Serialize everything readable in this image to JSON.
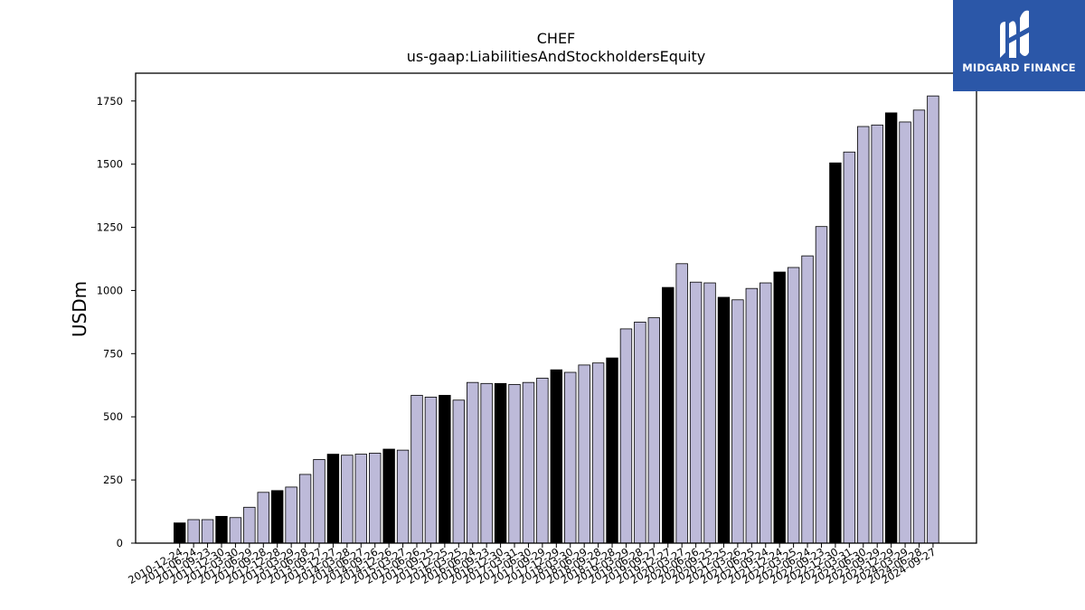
{
  "logo": {
    "text": "MIDGARD FINANCE"
  },
  "chart_data": {
    "type": "bar",
    "title": "CHEF",
    "subtitle": "us-gaap:LiabilitiesAndStockholdersEquity",
    "xlabel": "",
    "ylabel": "USDm",
    "ylim": [
      0,
      1860
    ],
    "yticks": [
      0,
      250,
      500,
      750,
      1000,
      1250,
      1500,
      1750
    ],
    "grid": false,
    "colors": {
      "fiscal_year_end": "#000000",
      "quarter": "#bdbad9",
      "edge": "#000000"
    },
    "categories": [
      "2010-12-24",
      "2011-06-24",
      "2011-09-23",
      "2011-12-30",
      "2012-03-30",
      "2012-06-29",
      "2012-09-28",
      "2012-12-28",
      "2013-03-29",
      "2013-06-28",
      "2013-09-27",
      "2013-12-27",
      "2014-03-28",
      "2014-06-27",
      "2014-09-26",
      "2014-12-26",
      "2015-03-27",
      "2015-06-26",
      "2015-09-25",
      "2015-12-25",
      "2016-03-25",
      "2016-06-24",
      "2016-09-23",
      "2016-12-30",
      "2017-03-31",
      "2017-06-30",
      "2017-09-29",
      "2017-12-29",
      "2018-03-30",
      "2018-06-29",
      "2018-09-28",
      "2018-12-28",
      "2019-03-29",
      "2019-06-28",
      "2019-09-27",
      "2019-12-27",
      "2020-03-27",
      "2020-06-26",
      "2020-09-25",
      "2020-12-25",
      "2021-03-26",
      "2021-06-25",
      "2021-09-24",
      "2021-12-24",
      "2022-03-25",
      "2022-06-24",
      "2022-09-23",
      "2022-12-30",
      "2023-03-31",
      "2023-06-30",
      "2023-09-29",
      "2023-12-29",
      "2024-03-29",
      "2024-06-28",
      "2024-09-27"
    ],
    "values": [
      80,
      93,
      93,
      106,
      101,
      142,
      201,
      208,
      222,
      272,
      331,
      352,
      348,
      352,
      356,
      372,
      368,
      585,
      578,
      585,
      566,
      636,
      632,
      632,
      628,
      636,
      653,
      686,
      676,
      705,
      713,
      733,
      848,
      875,
      892,
      1012,
      1106,
      1033,
      1030,
      973,
      963,
      1008,
      1030,
      1073,
      1091,
      1137,
      1253,
      1505,
      1548,
      1649,
      1655,
      1703,
      1667,
      1714,
      1770
    ],
    "highlight": [
      true,
      false,
      false,
      true,
      false,
      false,
      false,
      true,
      false,
      false,
      false,
      true,
      false,
      false,
      false,
      true,
      false,
      false,
      false,
      true,
      false,
      false,
      false,
      true,
      false,
      false,
      false,
      true,
      false,
      false,
      false,
      true,
      false,
      false,
      false,
      true,
      false,
      false,
      false,
      true,
      false,
      false,
      false,
      true,
      false,
      false,
      false,
      true,
      false,
      false,
      false,
      true,
      false,
      false,
      false
    ]
  }
}
